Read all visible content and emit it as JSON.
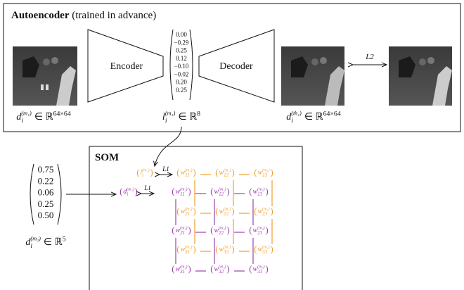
{
  "autoencoder": {
    "title": "Autoencoder",
    "subtitle": "(trained in advance)",
    "encoder": "Encoder",
    "decoder": "Decoder",
    "latent": [
      "0.00",
      "−0.29",
      "0.25",
      "0.12",
      "−0.10",
      "−0.02",
      "0.20",
      "0.25"
    ],
    "loss": "L2",
    "input_label": {
      "base": "d",
      "sub": "i",
      "sup": "(m₁)",
      "rel": "∈ ℝ",
      "exp": "64×64"
    },
    "latent_label": {
      "base": "l",
      "sub": "i",
      "sup": "(m₁)",
      "rel": "∈ ℝ",
      "exp": "8"
    },
    "output_label": {
      "base": "d",
      "sub": "i",
      "sup": "(m̂₁)",
      "rel": "∈ ℝ",
      "exp": "64×64"
    }
  },
  "som": {
    "title": "SOM",
    "input_vector": [
      "0.75",
      "0.22",
      "0.06",
      "0.25",
      "0.50"
    ],
    "input_label": {
      "base": "d",
      "sub": "i",
      "sup": "(m₂)",
      "rel": "∈ ℝ",
      "exp": "5"
    },
    "losses": [
      "L1",
      "L1"
    ],
    "latent_node": {
      "base": "l",
      "sub": "i",
      "sup": "(m₁)"
    },
    "input_node": {
      "base": "d",
      "sub": "i",
      "sup": "(m₂)"
    },
    "orange_nodes": [
      [
        {
          "base": "w",
          "sub": "11",
          "sup": "(m₁)"
        },
        {
          "base": "w",
          "sub": "12",
          "sup": "(m₁)"
        },
        {
          "base": "w",
          "sub": "13",
          "sup": "(m₁)"
        }
      ],
      [
        {
          "base": "w",
          "sub": "21",
          "sup": "(m₁)"
        },
        {
          "base": "w",
          "sub": "22",
          "sup": "(m₁)"
        },
        {
          "base": "w",
          "sub": "23",
          "sup": "(m₁)"
        }
      ],
      [
        {
          "base": "w",
          "sub": "31",
          "sup": "(m₁)"
        },
        {
          "base": "w",
          "sub": "32",
          "sup": "(m₁)"
        },
        {
          "base": "w",
          "sub": "33",
          "sup": "(m₁)"
        }
      ]
    ],
    "purple_nodes": [
      [
        {
          "base": "w",
          "sub": "11",
          "sup": "(m₂)"
        },
        {
          "base": "w",
          "sub": "12",
          "sup": "(m₂)"
        },
        {
          "base": "w",
          "sub": "13",
          "sup": "(m₂)"
        }
      ],
      [
        {
          "base": "w",
          "sub": "21",
          "sup": "(m₂)"
        },
        {
          "base": "w",
          "sub": "22",
          "sup": "(m₂)"
        },
        {
          "base": "w",
          "sub": "23",
          "sup": "(m₂)"
        }
      ],
      [
        {
          "base": "w",
          "sub": "31",
          "sup": "(m₂)"
        },
        {
          "base": "w",
          "sub": "32",
          "sup": "(m₂)"
        },
        {
          "base": "w",
          "sub": "33",
          "sup": "(m₂)"
        }
      ]
    ]
  }
}
